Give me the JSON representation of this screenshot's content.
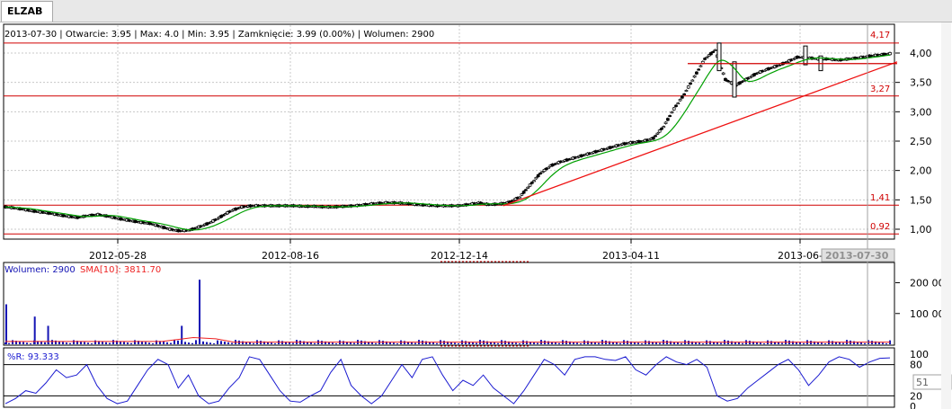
{
  "ticker_tab": "ELZAB",
  "info_bar": "2013-07-30 | Otwarcie: 3.95 | Max: 4.0 | Min: 3.95 | Zamknięcie: 3.99 (0.00%)  | Wolumen: 2900",
  "cursor_date_label": "2013-07-30",
  "level_labels": [
    "4,17",
    "3,27",
    "1,41",
    "0,92"
  ],
  "volume_legend": {
    "volume": "Wolumen: 2900",
    "sma": "SMA[10]: 3811.70"
  },
  "wr_legend": "%R: 93.333",
  "wr_value_box": "51",
  "colors": {
    "level_line": "#d00000",
    "trend_line": "#ee1111",
    "ma_line": "#00a000",
    "volume_bars": "#1414b4",
    "volume_sma": "#ee2222",
    "wr_line": "#1a1ad0",
    "grid": "#c8c8c8"
  },
  "chart_data": [
    {
      "type": "candlestick",
      "title": "ELZAB",
      "x_tick_labels": [
        "2012-05-28",
        "2012-08-16",
        "2012-12-14",
        "2013-04-11",
        "2013-06-"
      ],
      "y_tick_labels": [
        "4,00",
        "3,50",
        "3,00",
        "2,50",
        "2,00",
        "1,50",
        "1,00"
      ],
      "y_ticks": [
        4.0,
        3.5,
        3.0,
        2.5,
        2.0,
        1.5,
        1.0
      ],
      "ylim": [
        0.88,
        4.2
      ],
      "horizontal_levels": [
        4.17,
        3.27,
        1.41,
        0.92
      ],
      "last_bar": {
        "date": "2013-07-30",
        "open": 3.95,
        "high": 4.0,
        "low": 3.95,
        "close": 3.99
      },
      "price_path": [
        1.38,
        1.36,
        1.33,
        1.3,
        1.28,
        1.25,
        1.22,
        1.2,
        1.23,
        1.25,
        1.22,
        1.18,
        1.15,
        1.12,
        1.1,
        1.05,
        1.0,
        0.97,
        0.99,
        1.05,
        1.12,
        1.22,
        1.32,
        1.38,
        1.4,
        1.4,
        1.4,
        1.4,
        1.4,
        1.39,
        1.39,
        1.38,
        1.38,
        1.39,
        1.4,
        1.42,
        1.44,
        1.45,
        1.45,
        1.44,
        1.42,
        1.41,
        1.4,
        1.4,
        1.4,
        1.42,
        1.45,
        1.42,
        1.43,
        1.46,
        1.55,
        1.75,
        1.95,
        2.08,
        2.15,
        2.2,
        2.25,
        2.3,
        2.35,
        2.4,
        2.45,
        2.48,
        2.5,
        2.55,
        2.75,
        3.05,
        3.3,
        3.6,
        3.9,
        4.05,
        3.55,
        3.45,
        3.55,
        3.65,
        3.72,
        3.78,
        3.85,
        3.93,
        3.92,
        3.9,
        3.9,
        3.88,
        3.9,
        3.92,
        3.95,
        3.97,
        3.99
      ],
      "trend_line": {
        "from": {
          "label": "2012-12-14",
          "price": 1.4
        },
        "to": {
          "label": "2013-07-30",
          "price": 3.85
        }
      },
      "resistance_segment": {
        "price": 3.82
      }
    },
    {
      "type": "bar",
      "title": "Wolumen",
      "y_tick_labels": [
        "200 000",
        "100 000"
      ],
      "y_ticks": [
        200000,
        100000
      ],
      "ylim": [
        0,
        260000
      ],
      "spikes": [
        {
          "position": 0.003,
          "value": 130000
        },
        {
          "position": 0.035,
          "value": 90000
        },
        {
          "position": 0.05,
          "value": 60000
        },
        {
          "position": 0.22,
          "value": 210000
        },
        {
          "position": 0.2,
          "value": 60000
        }
      ],
      "sma_label": "SMA[10]"
    },
    {
      "type": "line",
      "title": "%R",
      "y_tick_labels": [
        "100",
        "80",
        "20",
        "0"
      ],
      "y_ticks": [
        100,
        80,
        20,
        0
      ],
      "ylim": [
        0,
        100
      ],
      "values": [
        5,
        15,
        30,
        25,
        45,
        70,
        55,
        60,
        80,
        40,
        15,
        5,
        10,
        40,
        70,
        90,
        80,
        35,
        60,
        20,
        5,
        10,
        35,
        55,
        95,
        90,
        60,
        30,
        10,
        8,
        20,
        30,
        65,
        90,
        40,
        20,
        5,
        20,
        50,
        80,
        55,
        90,
        95,
        60,
        30,
        50,
        40,
        60,
        35,
        20,
        5,
        30,
        60,
        90,
        80,
        60,
        90,
        95,
        95,
        90,
        88,
        95,
        70,
        60,
        80,
        95,
        85,
        80,
        90,
        75,
        20,
        10,
        15,
        35,
        50,
        65,
        80,
        90,
        70,
        40,
        60,
        85,
        95,
        90,
        75,
        85,
        92,
        93
      ]
    }
  ]
}
